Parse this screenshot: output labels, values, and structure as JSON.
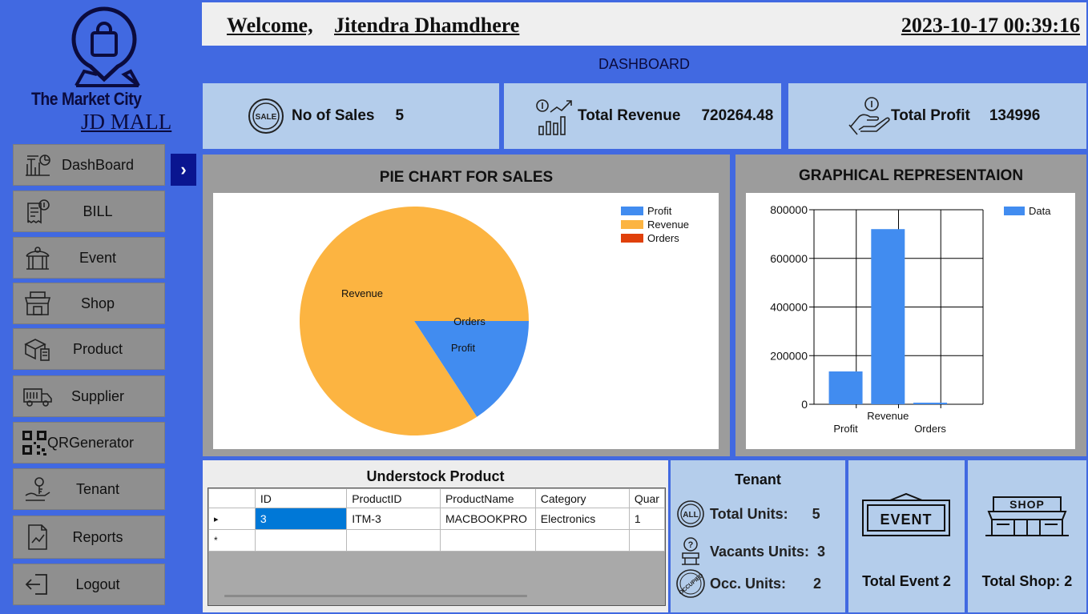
{
  "sidebar": {
    "brand": {
      "title": "The Market City",
      "subtitle": "JD MALL"
    },
    "items": [
      {
        "label": "DashBoard"
      },
      {
        "label": "BILL"
      },
      {
        "label": "Event"
      },
      {
        "label": "Shop"
      },
      {
        "label": "Product"
      },
      {
        "label": "Supplier"
      },
      {
        "label": "QRGenerator"
      },
      {
        "label": "Tenant"
      },
      {
        "label": "Reports"
      },
      {
        "label": "Logout"
      }
    ],
    "expand_glyph": "›"
  },
  "header": {
    "welcome_label": "Welcome,",
    "user_name": "Jitendra Dhamdhere",
    "datetime": "2023-10-17 00:39:16"
  },
  "dashboard_title": "DASHBOARD",
  "stats": {
    "sales": {
      "label": "No of Sales",
      "value": "5",
      "icon_text": "SALE"
    },
    "revenue": {
      "label": "Total Revenue",
      "value": "720264.48"
    },
    "profit": {
      "label": "Total Profit",
      "value": "134996"
    }
  },
  "pie_panel": {
    "title": "PIE CHART FOR SALES"
  },
  "bar_panel": {
    "title": "GRAPHICAL REPRESENTAION"
  },
  "chart_data": [
    {
      "type": "pie",
      "title": "PIE CHART FOR SALES",
      "categories": [
        "Profit",
        "Revenue",
        "Orders"
      ],
      "values": [
        134996,
        720264.48,
        5
      ],
      "legend": [
        "Profit",
        "Revenue",
        "Orders"
      ],
      "legend_position": "top-right",
      "colors": [
        "#418cf0",
        "#fcb441",
        "#e0400a"
      ]
    },
    {
      "type": "bar",
      "title": "GRAPHICAL REPRESENTAION",
      "categories": [
        "Profit",
        "Revenue",
        "Orders"
      ],
      "series": [
        {
          "name": "Data",
          "values": [
            134996,
            720264.48,
            5
          ]
        }
      ],
      "ylim": [
        0,
        800000
      ],
      "yticks": [
        "800000",
        "600000",
        "400000",
        "200000",
        "0"
      ],
      "grid": true,
      "legend_position": "top-right",
      "color": "#418cf0"
    }
  ],
  "understock": {
    "title": "Understock Product",
    "columns": [
      "ID",
      "ProductID",
      "ProductName",
      "Category",
      "Quar"
    ],
    "rows": [
      {
        "marker": "▸",
        "cells": [
          "3",
          "ITM-3",
          "MACBOOKPRO",
          "Electronics",
          "1"
        ]
      }
    ],
    "new_row_marker": "*"
  },
  "tenant": {
    "title": "Tenant",
    "total_units_label": "Total Units:",
    "total_units": "5",
    "vacant_label": "Vacants Units:",
    "vacant": "3",
    "occupied_label": "Occ. Units:",
    "occupied": "2",
    "icon_all": "ALL",
    "icon_occupied": "OCCUPIED"
  },
  "event_box": {
    "sign": "EVENT",
    "label": "Total Event 2"
  },
  "shop_box": {
    "sign": "SHOP",
    "label": "Total Shop: 2"
  },
  "colors": {
    "primary": "#4169e1",
    "card": "#b4cdeb",
    "nav_button": "#8f8f8f",
    "selection": "#0078d7"
  }
}
